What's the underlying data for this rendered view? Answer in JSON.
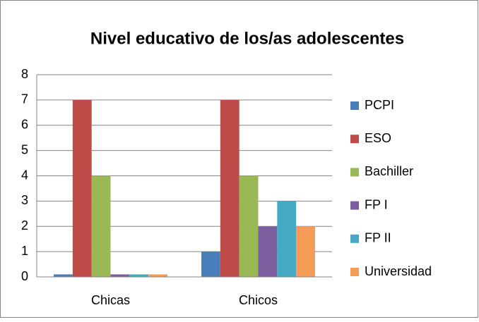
{
  "chart_data": {
    "type": "bar",
    "title": "Nivel educativo de los/as adolescentes",
    "categories": [
      "Chicas",
      "Chicos"
    ],
    "series": [
      {
        "name": "PCPI",
        "color": "#4a7ebb",
        "values": [
          0.1,
          1
        ]
      },
      {
        "name": "ESO",
        "color": "#be4b48",
        "values": [
          7,
          7
        ]
      },
      {
        "name": "Bachiller",
        "color": "#98b954",
        "values": [
          4,
          4
        ]
      },
      {
        "name": "FP I",
        "color": "#7d5fa0",
        "values": [
          0.1,
          2
        ]
      },
      {
        "name": "FP II",
        "color": "#46aac5",
        "values": [
          0.1,
          3
        ]
      },
      {
        "name": "Universidad",
        "color": "#f59d56",
        "values": [
          0.1,
          2
        ]
      }
    ],
    "ylim": [
      0,
      8
    ],
    "yticks": [
      0,
      1,
      2,
      3,
      4,
      5,
      6,
      7,
      8
    ],
    "grid": true,
    "legend": "right"
  }
}
